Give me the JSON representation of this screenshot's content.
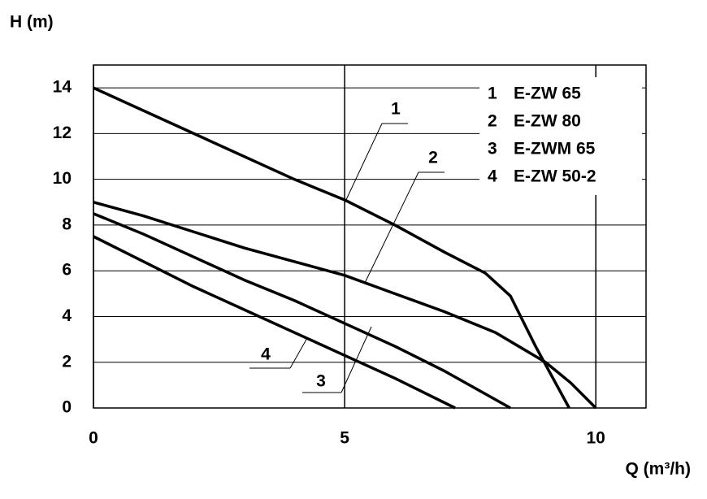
{
  "chart_data": {
    "type": "line",
    "y_label": "H (m)",
    "x_label": "Q (m³/h)",
    "xlim": [
      0,
      11
    ],
    "ylim": [
      0,
      15
    ],
    "xticks": [
      0,
      5,
      10
    ],
    "yticks": [
      0,
      2,
      4,
      6,
      8,
      10,
      12,
      14
    ],
    "grid": true,
    "legend": "upper right",
    "series": [
      {
        "label": "1",
        "name": "E-ZW 65",
        "color": "#000000",
        "x": [
          0,
          2,
          4,
          5,
          6,
          7,
          7.8,
          8.3,
          8.8,
          9.47
        ],
        "values": [
          14,
          12,
          10,
          9.1,
          8.0,
          6.8,
          5.9,
          4.9,
          2.7,
          0
        ]
      },
      {
        "label": "2",
        "name": "E-ZW 80",
        "color": "#000000",
        "x": [
          0,
          1,
          2,
          3,
          4,
          5,
          6,
          7,
          8,
          9,
          9.5,
          10
        ],
        "values": [
          9,
          8.4,
          7.7,
          7.0,
          6.4,
          5.8,
          5.0,
          4.2,
          3.3,
          2.0,
          1.1,
          0
        ]
      },
      {
        "label": "3",
        "name": "E-ZWM 65",
        "color": "#000000",
        "x": [
          0,
          1,
          2,
          3,
          4,
          5,
          6,
          7,
          8.3
        ],
        "values": [
          8.5,
          7.6,
          6.6,
          5.6,
          4.7,
          3.7,
          2.7,
          1.6,
          0
        ]
      },
      {
        "label": "4",
        "name": "E-ZW 50-2",
        "color": "#000000",
        "x": [
          0,
          1,
          2,
          3,
          4,
          5,
          6,
          7.2
        ],
        "values": [
          7.5,
          6.4,
          5.3,
          4.3,
          3.3,
          2.3,
          1.3,
          0
        ]
      }
    ]
  }
}
